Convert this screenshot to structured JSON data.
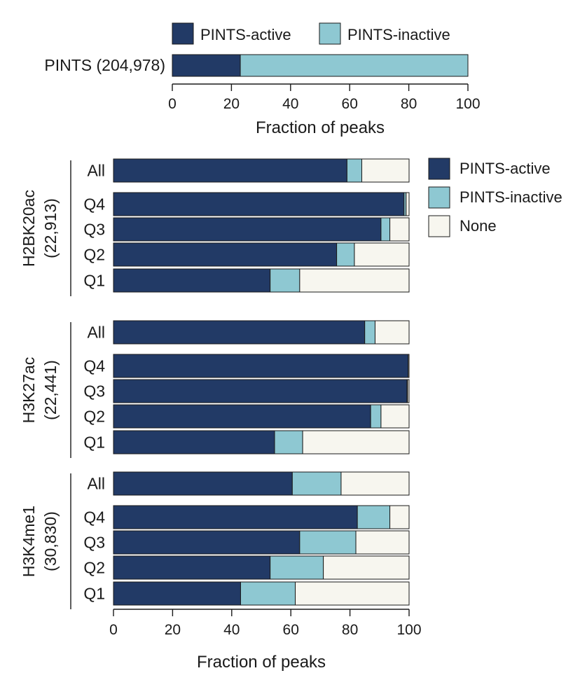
{
  "colors": {
    "pints_active": "#223a66",
    "pints_inactive": "#8ec8d2",
    "none": "#f7f6ef"
  },
  "chart_data": [
    {
      "type": "bar",
      "orientation": "horizontal",
      "stacked": true,
      "categories": [
        "PINTS (204,978)"
      ],
      "series": [
        {
          "name": "PINTS-active",
          "values": [
            23
          ]
        },
        {
          "name": "PINTS-inactive",
          "values": [
            77
          ]
        }
      ],
      "xlabel": "Fraction of peaks",
      "xlim": [
        0,
        100
      ],
      "xticks": [
        "0",
        "20",
        "40",
        "60",
        "80",
        "100"
      ],
      "legend": {
        "position": "top",
        "items": [
          "PINTS-active",
          "PINTS-inactive"
        ]
      }
    },
    {
      "type": "bar",
      "orientation": "horizontal",
      "stacked": true,
      "groups": [
        {
          "label": "H2BK20ac",
          "count": "(22,913)",
          "categories": [
            "All",
            "Q4",
            "Q3",
            "Q2",
            "Q1"
          ],
          "series": [
            {
              "name": "PINTS-active",
              "values": [
                79,
                98.3,
                90.5,
                75.5,
                53
              ]
            },
            {
              "name": "PINTS-inactive",
              "values": [
                5,
                0.7,
                3,
                6,
                10
              ]
            },
            {
              "name": "None",
              "values": [
                16,
                1,
                6.5,
                18.5,
                37
              ]
            }
          ]
        },
        {
          "label": "H3K27ac",
          "count": "(22,441)",
          "categories": [
            "All",
            "Q4",
            "Q3",
            "Q2",
            "Q1"
          ],
          "series": [
            {
              "name": "PINTS-active",
              "values": [
                85,
                99.7,
                99.3,
                87,
                54.5
              ]
            },
            {
              "name": "PINTS-inactive",
              "values": [
                3.5,
                0,
                0.2,
                3.5,
                9.5
              ]
            },
            {
              "name": "None",
              "values": [
                11.5,
                0.3,
                0.5,
                9.5,
                36
              ]
            }
          ]
        },
        {
          "label": "H3K4me1",
          "count": "(30,830)",
          "categories": [
            "All",
            "Q4",
            "Q3",
            "Q2",
            "Q1"
          ],
          "series": [
            {
              "name": "PINTS-active",
              "values": [
                60.5,
                82.5,
                63,
                53,
                43
              ]
            },
            {
              "name": "PINTS-inactive",
              "values": [
                16.5,
                11,
                19,
                18,
                18.5
              ]
            },
            {
              "name": "None",
              "values": [
                23,
                6.5,
                18,
                29,
                38.5
              ]
            }
          ]
        }
      ],
      "xlabel": "Fraction of peaks",
      "xlim": [
        0,
        100
      ],
      "xticks": [
        "0",
        "20",
        "40",
        "60",
        "80",
        "100"
      ],
      "legend": {
        "position": "right",
        "items": [
          "PINTS-active",
          "PINTS-inactive",
          "None"
        ]
      }
    }
  ]
}
